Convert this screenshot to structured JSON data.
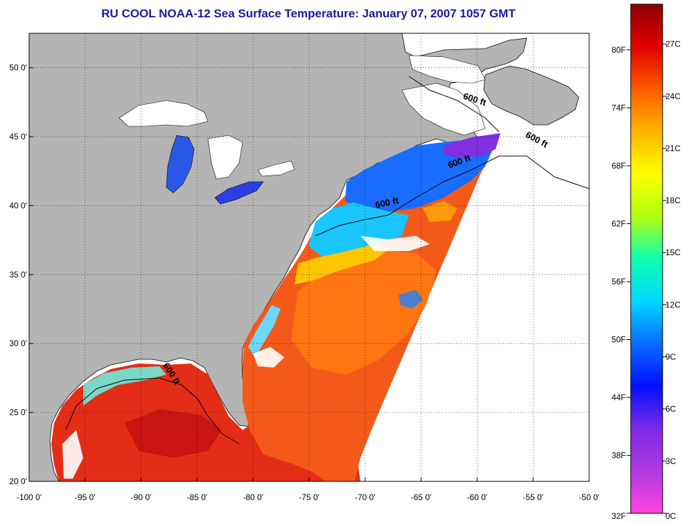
{
  "title": "RU COOL  NOAA-12  Sea Surface Temperature:  January 07, 2007 1057 GMT",
  "map": {
    "lon_range": [
      -100,
      -50
    ],
    "lat_range": [
      20,
      52.5
    ],
    "lon_ticks": [
      {
        "value": -100,
        "label": "-100 0'"
      },
      {
        "value": -95,
        "label": "-95 0'"
      },
      {
        "value": -90,
        "label": "-90 0'"
      },
      {
        "value": -85,
        "label": "-85 0'"
      },
      {
        "value": -80,
        "label": "-80 0'"
      },
      {
        "value": -75,
        "label": "-75 0'"
      },
      {
        "value": -70,
        "label": "-70 0'"
      },
      {
        "value": -65,
        "label": "-65 0'"
      },
      {
        "value": -60,
        "label": "-60 0'"
      },
      {
        "value": -55,
        "label": "-55 0'"
      },
      {
        "value": -50,
        "label": "-50 0'"
      }
    ],
    "lat_ticks": [
      {
        "value": 20,
        "label": "20 0'"
      },
      {
        "value": 25,
        "label": "25 0'"
      },
      {
        "value": 30,
        "label": "30 0'"
      },
      {
        "value": 35,
        "label": "35 0'"
      },
      {
        "value": 40,
        "label": "40 0'"
      },
      {
        "value": 45,
        "label": "45 0'"
      },
      {
        "value": 50,
        "label": "50 0'"
      }
    ],
    "grid": true,
    "land_color": "#b4b4b4",
    "no_data_color": "#ffffff",
    "contour_labels": [
      {
        "text": "600 ft",
        "lon": -60.3,
        "lat": 47.5,
        "angle": 18
      },
      {
        "text": "600 ft",
        "lon": -54.8,
        "lat": 44.6,
        "angle": 28
      },
      {
        "text": "600 ft",
        "lon": -61.5,
        "lat": 43.0,
        "angle": -20
      },
      {
        "text": "600 ft",
        "lon": -68.0,
        "lat": 40.0,
        "angle": -12
      },
      {
        "text": "600 ft",
        "lon": -87.5,
        "lat": 27.7,
        "angle": 58
      }
    ]
  },
  "colorbar": {
    "range_c": [
      0,
      29.3
    ],
    "left_labels": [
      {
        "value_c": 0,
        "label": "32F"
      },
      {
        "value_c": 3.33,
        "label": "38F"
      },
      {
        "value_c": 6.67,
        "label": "44F"
      },
      {
        "value_c": 10,
        "label": "50F"
      },
      {
        "value_c": 13.33,
        "label": "56F"
      },
      {
        "value_c": 16.67,
        "label": "62F"
      },
      {
        "value_c": 20,
        "label": "68F"
      },
      {
        "value_c": 23.33,
        "label": "74F"
      },
      {
        "value_c": 26.67,
        "label": "80F"
      }
    ],
    "right_labels": [
      {
        "value_c": 0,
        "label": "0C"
      },
      {
        "value_c": 3,
        "label": "3C"
      },
      {
        "value_c": 6,
        "label": "6C"
      },
      {
        "value_c": 9,
        "label": "9C"
      },
      {
        "value_c": 12,
        "label": "12C"
      },
      {
        "value_c": 15,
        "label": "15C"
      },
      {
        "value_c": 18,
        "label": "18C"
      },
      {
        "value_c": 21,
        "label": "21C"
      },
      {
        "value_c": 24,
        "label": "24C"
      },
      {
        "value_c": 27,
        "label": "27C"
      }
    ],
    "colors": [
      "#ff44e0",
      "#b03adf",
      "#7a2ae6",
      "#0010ff",
      "#0a6cff",
      "#00d8ff",
      "#10ffb0",
      "#b0ff10",
      "#ffff00",
      "#ffb400",
      "#ff5a00",
      "#e00000",
      "#8b0000"
    ]
  }
}
